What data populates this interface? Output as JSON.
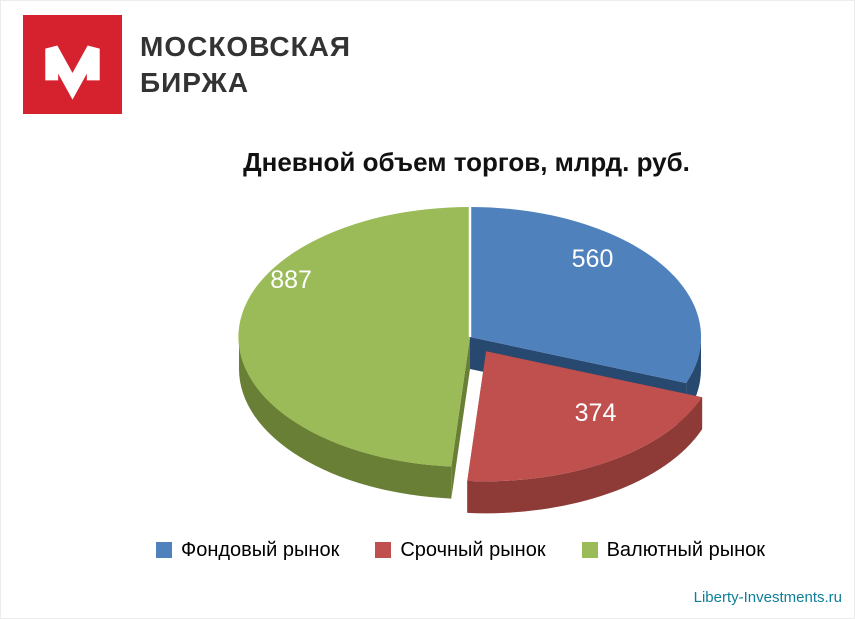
{
  "page": {
    "credit": "Liberty-Investments.ru"
  },
  "logo": {
    "line1": "МОСКОВСКАЯ",
    "line2": "БИРЖА",
    "mark_color": "#d6212f"
  },
  "chart_data": {
    "type": "pie",
    "title": "Дневной объем торгов, млрд. руб.",
    "categories": [
      "Фондовый рынок",
      "Срочный рынок",
      "Валютный рынок"
    ],
    "values": [
      560,
      374,
      887
    ],
    "colors": [
      "#4f81bd",
      "#c0504d",
      "#9bbb59"
    ],
    "side_colors": [
      "#27486f",
      "#8e3a37",
      "#687f35"
    ],
    "label_color": "#ffffff",
    "effect": "3d",
    "start_angle_deg": 0,
    "direction": "clockwise",
    "exploded_slice": "Срочный рынок",
    "legend_position": "bottom"
  }
}
